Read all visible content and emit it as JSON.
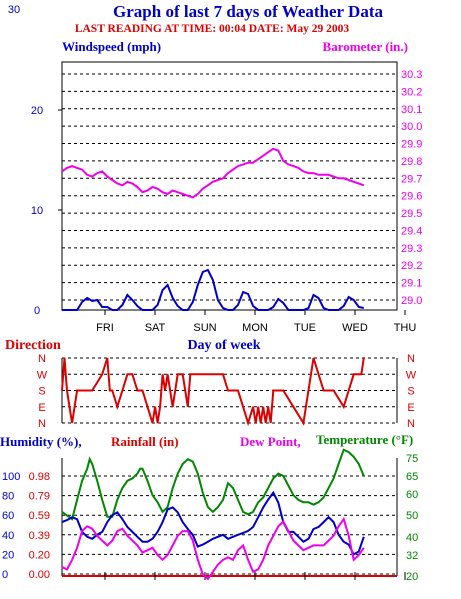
{
  "chart_data": [
    {
      "type": "line",
      "title": "Graph of last 7 days of Weather Data",
      "subtitle": "LAST READING AT TIME: 00:04  DATE: May 29 2003",
      "left_axis_label": "Windspeed (mph)",
      "right_axis_label": "Barometer (in.)",
      "xlabel": "Day of week",
      "categories": [
        "FRI",
        "SAT",
        "SUN",
        "MON",
        "TUE",
        "WED",
        "THU"
      ],
      "left_ticks": [
        "30",
        "20",
        "10",
        "0"
      ],
      "left_ylim": [
        0,
        30
      ],
      "right_ticks": [
        "30.3",
        "30.2",
        "30.1",
        "30.0",
        "29.9",
        "29.8",
        "29.7",
        "29.6",
        "29.5",
        "29.4",
        "29.3",
        "29.2",
        "29.1",
        "29.0"
      ],
      "right_ylim": [
        29.0,
        30.3
      ],
      "grid": "horizontal dashed",
      "colors": {
        "windspeed": "#0000cc",
        "barometer": "#ee00ee",
        "axes": "#000000"
      },
      "series": [
        {
          "name": "Windspeed (mph)",
          "axis": "left",
          "x": [
            0,
            0.15,
            0.3,
            0.4,
            0.5,
            0.6,
            0.7,
            0.8,
            0.9,
            1.0,
            1.1,
            1.2,
            1.3,
            1.4,
            1.5,
            1.6,
            1.7,
            1.8,
            1.9,
            2.0,
            2.1,
            2.2,
            2.3,
            2.4,
            2.5,
            2.6,
            2.7,
            2.8,
            2.9,
            3.0,
            3.1,
            3.2,
            3.3,
            3.4,
            3.5,
            3.6,
            3.7,
            3.8,
            3.9,
            4.0,
            4.1,
            4.2,
            4.3,
            4.4,
            4.5,
            4.6,
            4.7,
            4.8,
            4.9,
            5.0,
            5.1,
            5.2,
            5.3,
            5.4,
            5.5,
            5.6,
            5.7,
            5.8,
            5.9,
            6.0
          ],
          "values": [
            0,
            0,
            0,
            0.8,
            1.2,
            0.9,
            1.0,
            0.3,
            0.3,
            0,
            0,
            0.5,
            1.5,
            1.0,
            0.4,
            0,
            0,
            0,
            0.5,
            2.0,
            2.5,
            1.2,
            0.4,
            0,
            0,
            0.8,
            2.5,
            3.8,
            4.0,
            3.0,
            1.0,
            0.2,
            0,
            0,
            0.5,
            1.8,
            1.6,
            0.4,
            0,
            0,
            0,
            0.3,
            1.1,
            0.7,
            0,
            0,
            0,
            0,
            0.2,
            1.5,
            1.2,
            0.2,
            0,
            0,
            0,
            0.4,
            1.3,
            1.0,
            0.3,
            0.2
          ]
        },
        {
          "name": "Barometer (in.)",
          "axis": "right",
          "x": [
            0,
            0.1,
            0.2,
            0.3,
            0.4,
            0.5,
            0.6,
            0.7,
            0.8,
            0.9,
            1.0,
            1.1,
            1.2,
            1.3,
            1.4,
            1.5,
            1.6,
            1.7,
            1.8,
            1.9,
            2.0,
            2.1,
            2.2,
            2.3,
            2.4,
            2.5,
            2.6,
            2.7,
            2.8,
            2.9,
            3.0,
            3.1,
            3.2,
            3.3,
            3.4,
            3.5,
            3.6,
            3.7,
            3.8,
            3.9,
            4.0,
            4.1,
            4.2,
            4.3,
            4.4,
            4.5,
            4.6,
            4.7,
            4.8,
            4.9,
            5.0,
            5.1,
            5.2,
            5.3,
            5.4,
            5.5,
            5.6,
            5.7,
            5.8,
            5.9,
            6.0
          ],
          "values": [
            29.74,
            29.76,
            29.77,
            29.76,
            29.75,
            29.72,
            29.71,
            29.73,
            29.74,
            29.71,
            29.69,
            29.67,
            29.66,
            29.68,
            29.67,
            29.65,
            29.62,
            29.63,
            29.65,
            29.64,
            29.62,
            29.61,
            29.63,
            29.62,
            29.61,
            29.6,
            29.59,
            29.61,
            29.64,
            29.66,
            29.68,
            29.69,
            29.7,
            29.73,
            29.75,
            29.77,
            29.78,
            29.79,
            29.79,
            29.81,
            29.83,
            29.85,
            29.87,
            29.86,
            29.8,
            29.78,
            29.77,
            29.76,
            29.74,
            29.73,
            29.73,
            29.72,
            29.72,
            29.72,
            29.71,
            29.7,
            29.7,
            29.69,
            29.68,
            29.67,
            29.66
          ]
        }
      ]
    },
    {
      "type": "line",
      "title": "Direction",
      "categories": [
        "FRI",
        "SAT",
        "SUN",
        "MON",
        "TUE",
        "WED",
        "THU"
      ],
      "left_ticks": [
        "N",
        "W",
        "S",
        "E",
        "N"
      ],
      "right_ticks": [
        "N",
        "W",
        "S",
        "E",
        "N"
      ],
      "colors": {
        "direction": "#dd0000"
      },
      "series": [
        {
          "name": "Direction",
          "values_desc": "wind direction (N,E,S,W,N scale)",
          "x": [
            0,
            0.05,
            0.1,
            0.15,
            0.2,
            0.3,
            0.4,
            0.5,
            0.6,
            0.8,
            0.9,
            0.95,
            1.0,
            1.1,
            1.2,
            1.3,
            1.4,
            1.5,
            1.6,
            1.7,
            1.8,
            1.85,
            1.9,
            1.95,
            2.0,
            2.05,
            2.1,
            2.2,
            2.3,
            2.4,
            2.5,
            2.55,
            2.6,
            2.7,
            2.8,
            3.0,
            3.2,
            3.3,
            3.5,
            3.6,
            3.7,
            3.8,
            3.85,
            3.9,
            3.95,
            4.0,
            4.05,
            4.1,
            4.15,
            4.2,
            4.3,
            4.4,
            4.6,
            4.8,
            5.0,
            5.2,
            5.4,
            5.6,
            5.7,
            5.8,
            5.9,
            5.95,
            6.0
          ],
          "values": [
            "S",
            "N",
            "S",
            "E",
            "N",
            "S",
            "S",
            "S",
            "S",
            "W",
            "N",
            "S",
            "S",
            "E",
            "S",
            "W",
            "W",
            "S",
            "S",
            "E",
            "N",
            "E",
            "N",
            "E",
            "W",
            "S",
            "W",
            "E",
            "W",
            "W",
            "E",
            "W",
            "W",
            "W",
            "W",
            "W",
            "W",
            "S",
            "S",
            "E",
            "N",
            "E",
            "N",
            "E",
            "N",
            "E",
            "N",
            "E",
            "N",
            "S",
            "S",
            "S",
            "E",
            "N",
            "N",
            "S",
            "S",
            "E",
            "S",
            "W",
            "W",
            "W",
            "N"
          ]
        }
      ]
    },
    {
      "type": "line",
      "legend_labels": [
        "Humidity (%),",
        "Rainfall (in)",
        "Dew Point,",
        "Temperature (°F)"
      ],
      "categories": [
        "FRI",
        "SAT",
        "SUN",
        "MON",
        "TUE",
        "WED",
        "THU"
      ],
      "humidity_ticks": [
        "100",
        "80",
        "60",
        "40",
        "20",
        "0"
      ],
      "rainfall_ticks": [
        "0.98",
        "0.79",
        "0.59",
        "0.39",
        "0.20",
        "0.00"
      ],
      "temperature_ticks": [
        "75",
        "65",
        "60",
        "50",
        "40",
        "32",
        "20"
      ],
      "colors": {
        "humidity": "#0000cc",
        "rainfall": "#dd0000",
        "dewpoint": "#ee00ee",
        "temperature": "#008800"
      },
      "series": [
        {
          "name": "Temperature (°F)",
          "axis": "right",
          "x": [
            0,
            0.2,
            0.3,
            0.4,
            0.5,
            0.55,
            0.6,
            0.7,
            0.8,
            0.9,
            1.0,
            1.1,
            1.2,
            1.3,
            1.4,
            1.5,
            1.55,
            1.6,
            1.7,
            1.8,
            1.9,
            2.0,
            2.1,
            2.2,
            2.3,
            2.4,
            2.5,
            2.6,
            2.7,
            2.8,
            2.9,
            3.0,
            3.1,
            3.2,
            3.3,
            3.4,
            3.5,
            3.6,
            3.7,
            3.8,
            3.9,
            4.0,
            4.1,
            4.2,
            4.3,
            4.4,
            4.5,
            4.6,
            4.7,
            4.8,
            4.9,
            5.0,
            5.1,
            5.2,
            5.3,
            5.4,
            5.5,
            5.6,
            5.7,
            5.75,
            5.8,
            5.9,
            6.0
          ],
          "values": [
            50,
            47,
            55,
            63,
            68,
            72,
            70,
            63,
            55,
            48,
            48,
            55,
            60,
            63,
            64,
            66,
            68,
            68,
            63,
            57,
            54,
            50,
            52,
            60,
            66,
            70,
            72,
            71,
            66,
            58,
            52,
            50,
            52,
            55,
            62,
            60,
            55,
            50,
            49,
            50,
            54,
            56,
            60,
            64,
            66,
            65,
            61,
            57,
            55,
            54,
            54,
            53,
            54,
            56,
            60,
            64,
            70,
            76,
            75,
            74,
            73,
            70,
            65
          ]
        },
        {
          "name": "Humidity (%),",
          "axis": "humidity",
          "x": [
            0,
            0.1,
            0.2,
            0.3,
            0.4,
            0.5,
            0.6,
            0.7,
            0.8,
            0.9,
            1.0,
            1.1,
            1.2,
            1.3,
            1.4,
            1.5,
            1.6,
            1.7,
            1.8,
            1.9,
            2.0,
            2.1,
            2.2,
            2.3,
            2.4,
            2.5,
            2.6,
            2.7,
            2.8,
            2.9,
            3.0,
            3.1,
            3.2,
            3.3,
            3.4,
            3.5,
            3.6,
            3.7,
            3.8,
            3.9,
            4.0,
            4.1,
            4.2,
            4.3,
            4.4,
            4.5,
            4.6,
            4.7,
            4.8,
            4.9,
            5.0,
            5.1,
            5.2,
            5.3,
            5.4,
            5.5,
            5.6,
            5.7,
            5.8,
            5.9,
            6.0
          ],
          "values": [
            55,
            57,
            60,
            58,
            45,
            40,
            38,
            42,
            45,
            55,
            62,
            65,
            58,
            50,
            45,
            40,
            35,
            35,
            38,
            45,
            55,
            68,
            70,
            65,
            55,
            48,
            42,
            30,
            32,
            35,
            38,
            40,
            42,
            38,
            40,
            42,
            44,
            46,
            50,
            60,
            70,
            78,
            85,
            75,
            55,
            45,
            45,
            40,
            35,
            38,
            48,
            50,
            55,
            60,
            55,
            42,
            35,
            32,
            22,
            25,
            40
          ]
        },
        {
          "name": "Dew Point,",
          "axis": "right",
          "x": [
            0,
            0.1,
            0.2,
            0.3,
            0.4,
            0.5,
            0.6,
            0.7,
            0.8,
            0.9,
            1.0,
            1.1,
            1.2,
            1.3,
            1.4,
            1.5,
            1.6,
            1.7,
            1.8,
            1.9,
            2.0,
            2.1,
            2.2,
            2.3,
            2.4,
            2.5,
            2.6,
            2.7,
            2.8,
            2.9,
            3.0,
            3.1,
            3.2,
            3.3,
            3.4,
            3.5,
            3.6,
            3.7,
            3.8,
            3.9,
            4.0,
            4.1,
            4.2,
            4.3,
            4.4,
            4.5,
            4.6,
            4.7,
            4.8,
            4.9,
            5.0,
            5.1,
            5.2,
            5.3,
            5.4,
            5.5,
            5.6,
            5.7,
            5.8,
            5.9,
            6.0
          ],
          "values": [
            27,
            26,
            30,
            35,
            42,
            44,
            43,
            40,
            38,
            36,
            38,
            42,
            43,
            40,
            38,
            36,
            33,
            34,
            35,
            32,
            30,
            32,
            36,
            40,
            42,
            42,
            38,
            30,
            24,
            22,
            25,
            28,
            30,
            31,
            30,
            34,
            36,
            30,
            25,
            26,
            30,
            36,
            40,
            44,
            46,
            42,
            38,
            36,
            34,
            35,
            36,
            36,
            36,
            38,
            40,
            44,
            47,
            40,
            30,
            32,
            35
          ]
        },
        {
          "name": "Rainfall (in)",
          "axis": "rainfall",
          "values_desc": "rainfall total",
          "x": [
            0,
            6.0
          ],
          "values": [
            0.0,
            0.0
          ]
        }
      ]
    }
  ]
}
